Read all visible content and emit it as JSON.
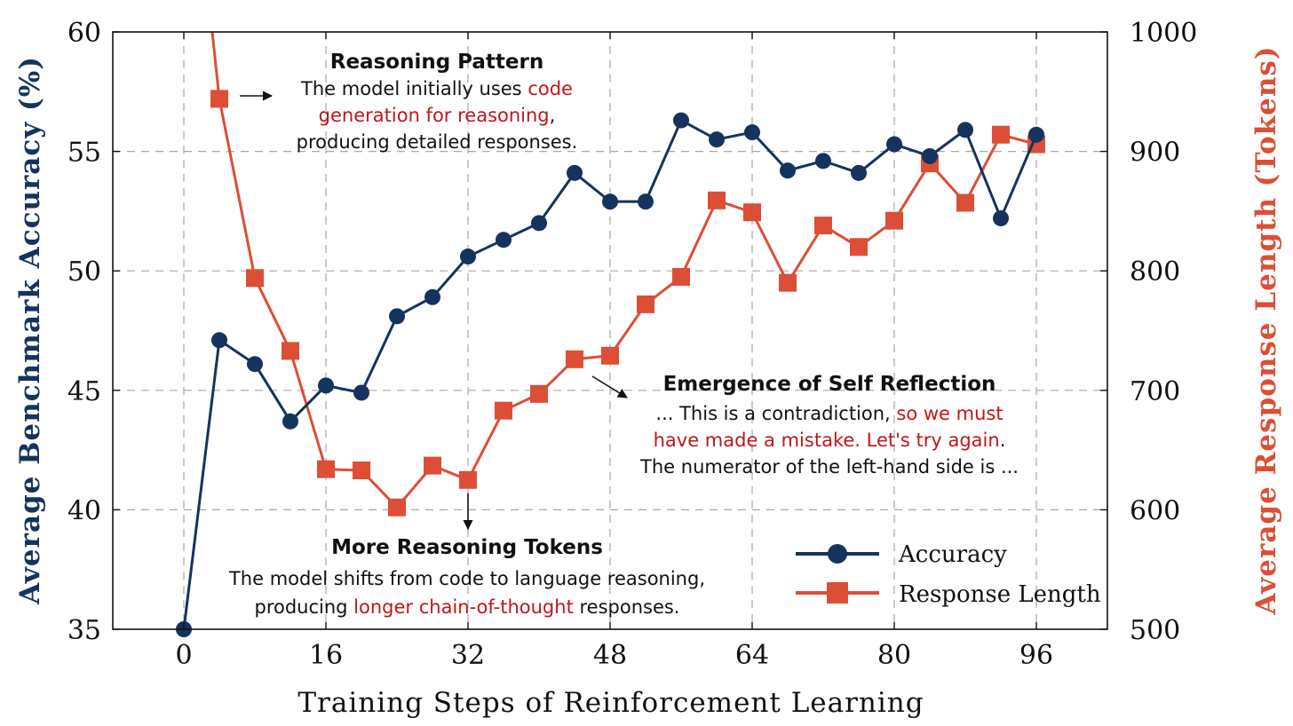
{
  "chart_data": {
    "type": "line",
    "xlabel": "Training Steps of Reinforcement Learning",
    "ylabel_left": "Average Benchmark Accuracy (%)",
    "ylabel_right": "Average Response Length (Tokens)",
    "xlim": [
      -8,
      104
    ],
    "ylim_left": [
      35,
      60
    ],
    "ylim_right": [
      500,
      1000
    ],
    "xticks": [
      0,
      16,
      32,
      48,
      64,
      80,
      96
    ],
    "yticks_left": [
      35,
      40,
      45,
      50,
      55,
      60
    ],
    "yticks_right": [
      500,
      600,
      700,
      800,
      900,
      1000
    ],
    "grid": true,
    "legend_position": "bottom-right",
    "colors": {
      "accuracy": "#14335e",
      "response_length": "#dc4e35",
      "highlight": "#c0161a"
    },
    "series": [
      {
        "name": "Accuracy",
        "axis": "left",
        "marker": "circle",
        "x": [
          0,
          4,
          8,
          12,
          16,
          20,
          24,
          28,
          32,
          36,
          40,
          44,
          48,
          52,
          56,
          60,
          64,
          68,
          72,
          76,
          80,
          84,
          88,
          92,
          96
        ],
        "y": [
          35.0,
          47.1,
          46.1,
          43.7,
          45.2,
          44.9,
          48.1,
          48.9,
          50.6,
          51.3,
          52.0,
          54.1,
          52.9,
          52.9,
          56.3,
          55.5,
          55.8,
          54.2,
          54.6,
          54.1,
          55.3,
          54.8,
          55.9,
          52.2,
          55.7
        ]
      },
      {
        "name": "Response Length",
        "axis": "right",
        "marker": "square",
        "line_start": {
          "x": 3.2,
          "y": 1000
        },
        "x": [
          4,
          8,
          12,
          16,
          20,
          24,
          28,
          32,
          36,
          40,
          44,
          48,
          52,
          56,
          60,
          64,
          68,
          72,
          76,
          80,
          84,
          88,
          92,
          96
        ],
        "y": [
          944,
          794,
          733,
          634,
          633,
          602,
          637,
          625,
          683,
          697,
          726,
          729,
          772,
          795,
          859,
          849,
          790,
          838,
          820,
          842,
          890,
          857,
          914,
          906
        ]
      }
    ],
    "annotations": [
      {
        "id": "reasoning-pattern",
        "title": "Reasoning Pattern",
        "lines": [
          [
            {
              "text": "The model initially uses ",
              "highlight": false
            },
            {
              "text": "code",
              "highlight": true
            }
          ],
          [
            {
              "text": "generation for reasoning",
              "highlight": true
            },
            {
              "text": ",",
              "highlight": false
            }
          ],
          [
            {
              "text": "producing detailed responses.",
              "highlight": false
            }
          ]
        ]
      },
      {
        "id": "self-reflection",
        "title": "Emergence of Self Reflection",
        "lines": [
          [
            {
              "text": "... This is a contradiction, ",
              "highlight": false
            },
            {
              "text": "so we must",
              "highlight": true
            }
          ],
          [
            {
              "text": "have made a mistake. Let's try again",
              "highlight": true
            },
            {
              "text": ".",
              "highlight": false
            }
          ],
          [
            {
              "text": "The numerator of the left-hand side is ...",
              "highlight": false
            }
          ]
        ]
      },
      {
        "id": "more-tokens",
        "title": "More Reasoning Tokens",
        "lines": [
          [
            {
              "text": "The model shifts from code to language reasoning,",
              "highlight": false
            }
          ],
          [
            {
              "text": "producing ",
              "highlight": false
            },
            {
              "text": "longer chain-of-thought",
              "highlight": true
            },
            {
              "text": " responses.",
              "highlight": false
            }
          ]
        ]
      }
    ]
  }
}
